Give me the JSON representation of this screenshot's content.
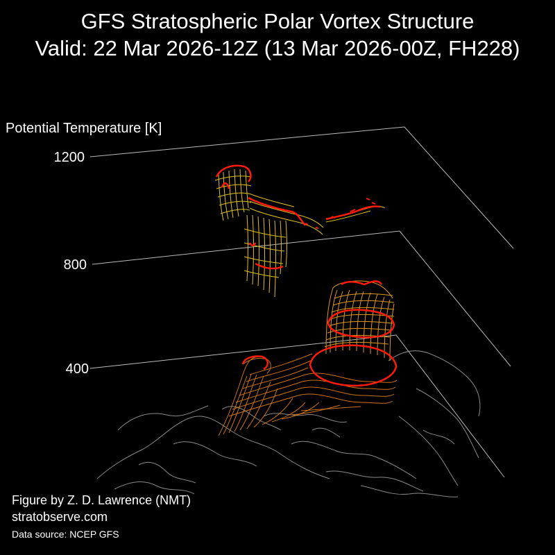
{
  "chart_data": {
    "type": "3d-isosurface",
    "title": "GFS Stratospheric Polar Vortex Structure",
    "subtitle": "Valid: 22 Mar 2026-12Z  (13 Mar 2026-00Z, FH228)",
    "zlabel": "Potential Temperature [K]",
    "z_ticks": [
      "1200",
      "800",
      "400"
    ],
    "zlim": [
      400,
      1200
    ],
    "colors": {
      "background": "#000000",
      "axis_lines": "#bbbbbb",
      "coastlines": "#8a8a8a",
      "low_level_contours": "#d97b12",
      "high_level_contours": "#e0c21a",
      "highlight_contours": "#ff1a0a"
    }
  },
  "credits": {
    "author": "Figure by Z. D. Lawrence (NMT)",
    "site": "stratobserve.com",
    "source": "Data source: NCEP GFS"
  }
}
